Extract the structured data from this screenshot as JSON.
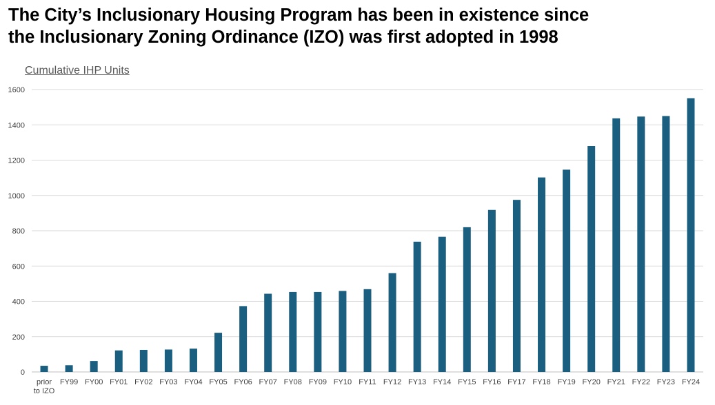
{
  "headline": {
    "line1": "The City’s Inclusionary Housing Program has been in existence since",
    "line2": "the Inclusionary Zoning Ordinance (IZO) was first adopted in 1998"
  },
  "chart_data": {
    "type": "bar",
    "title": "Cumulative IHP Units",
    "categories": [
      "prior to IZO",
      "FY99",
      "FY00",
      "FY01",
      "FY02",
      "FY03",
      "FY04",
      "FY05",
      "FY06",
      "FY07",
      "FY08",
      "FY09",
      "FY10",
      "FY11",
      "FY12",
      "FY13",
      "FY14",
      "FY15",
      "FY16",
      "FY17",
      "FY18",
      "FY19",
      "FY20",
      "FY21",
      "FY22",
      "FY23",
      "FY24"
    ],
    "category_lines": [
      [
        "prior",
        "to IZO"
      ],
      [
        "FY99"
      ],
      [
        "FY00"
      ],
      [
        "FY01"
      ],
      [
        "FY02"
      ],
      [
        "FY03"
      ],
      [
        "FY04"
      ],
      [
        "FY05"
      ],
      [
        "FY06"
      ],
      [
        "FY07"
      ],
      [
        "FY08"
      ],
      [
        "FY09"
      ],
      [
        "FY10"
      ],
      [
        "FY11"
      ],
      [
        "FY12"
      ],
      [
        "FY13"
      ],
      [
        "FY14"
      ],
      [
        "FY15"
      ],
      [
        "FY16"
      ],
      [
        "FY17"
      ],
      [
        "FY18"
      ],
      [
        "FY19"
      ],
      [
        "FY20"
      ],
      [
        "FY21"
      ],
      [
        "FY22"
      ],
      [
        "FY23"
      ],
      [
        "FY24"
      ]
    ],
    "values": [
      35,
      38,
      62,
      122,
      125,
      127,
      132,
      222,
      373,
      443,
      453,
      453,
      459,
      469,
      560,
      738,
      766,
      820,
      918,
      975,
      1102,
      1146,
      1280,
      1437,
      1447,
      1450,
      1551
    ],
    "xlabel": "",
    "ylabel": "",
    "ylim": [
      0,
      1600
    ],
    "yticks": [
      0,
      200,
      400,
      600,
      800,
      1000,
      1200,
      1400,
      1600
    ],
    "grid": true,
    "legend": "none",
    "colors": {
      "bar": "#1b5f80",
      "grid": "#d9d9d9",
      "axis": "#bfbfbf"
    }
  }
}
